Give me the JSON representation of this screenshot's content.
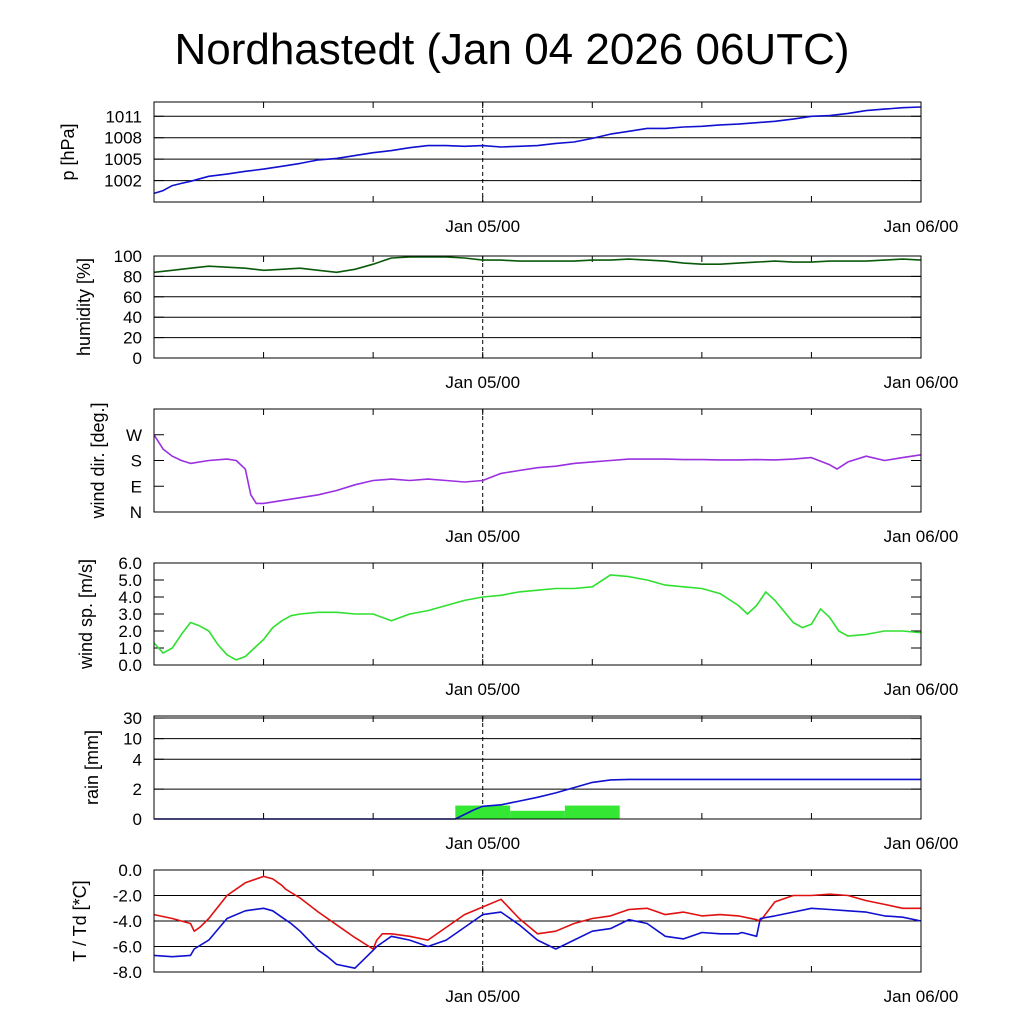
{
  "title": "Nordhastedt (Jan 04 2026 06UTC)",
  "x_axis": {
    "ticks": [
      "Jan 05/00",
      "Jan 06/00"
    ],
    "tick_hours": [
      18,
      42
    ],
    "range_hours": [
      0,
      42
    ]
  },
  "chart_data": [
    {
      "id": "pressure",
      "type": "line",
      "ylabel": "p [hPa]",
      "ylim": [
        999,
        1013
      ],
      "yticks": [
        1002,
        1005,
        1008,
        1011
      ],
      "ytick_labels": [
        "1002",
        "1005",
        "1008",
        "1011"
      ],
      "grid": true,
      "series": [
        {
          "color": "#1010d0",
          "x": [
            0,
            0.5,
            1,
            1.5,
            2,
            3,
            4,
            5,
            6,
            7,
            8,
            9,
            10,
            11,
            12,
            13,
            14,
            15,
            16,
            17,
            18,
            19,
            20,
            21,
            22,
            23,
            24,
            25,
            26,
            27,
            28,
            29,
            30,
            31,
            32,
            33,
            34,
            35,
            36,
            37,
            38,
            39,
            40,
            41,
            42
          ],
          "y": [
            1000.2,
            1000.6,
            1001.3,
            1001.6,
            1001.9,
            1002.6,
            1002.9,
            1003.3,
            1003.6,
            1004.0,
            1004.4,
            1004.9,
            1005.1,
            1005.5,
            1005.9,
            1006.2,
            1006.6,
            1006.9,
            1006.9,
            1006.8,
            1006.9,
            1006.7,
            1006.8,
            1006.9,
            1007.2,
            1007.4,
            1007.9,
            1008.5,
            1008.9,
            1009.3,
            1009.3,
            1009.5,
            1009.6,
            1009.8,
            1009.9,
            1010.1,
            1010.3,
            1010.6,
            1011.0,
            1011.1,
            1011.4,
            1011.8,
            1012.0,
            1012.2,
            1012.3
          ]
        }
      ]
    },
    {
      "id": "humidity",
      "type": "line",
      "ylabel": "humidity [%]",
      "ylim": [
        0,
        100
      ],
      "yticks": [
        0,
        20,
        40,
        60,
        80,
        100
      ],
      "ytick_labels": [
        "0",
        "20",
        "40",
        "60",
        "80",
        "100"
      ],
      "grid": true,
      "series": [
        {
          "color": "#0a5a0a",
          "x": [
            0,
            1,
            2,
            3,
            4,
            5,
            6,
            7,
            8,
            9,
            10,
            11,
            12,
            13,
            14,
            15,
            16,
            17,
            18,
            19,
            20,
            21,
            22,
            23,
            24,
            25,
            26,
            27,
            28,
            29,
            30,
            31,
            32,
            33,
            34,
            35,
            36,
            37,
            38,
            39,
            40,
            41,
            42
          ],
          "y": [
            84,
            86,
            88,
            90,
            89,
            88,
            86,
            87,
            88,
            86,
            84,
            87,
            92,
            98,
            99,
            99,
            99,
            98,
            96,
            96,
            95,
            95,
            95,
            95,
            96,
            96,
            97,
            96,
            95,
            93,
            92,
            92,
            93,
            94,
            95,
            94,
            94,
            95,
            95,
            95,
            96,
            97,
            96
          ]
        }
      ]
    },
    {
      "id": "wind_dir",
      "type": "line",
      "ylabel": "wind dir. [deg.]",
      "ylim": [
        0,
        360
      ],
      "yticks": [
        0,
        90,
        180,
        270
      ],
      "ytick_labels": [
        "N",
        "E",
        "S",
        "W"
      ],
      "grid": false,
      "series": [
        {
          "color": "#9b30e0",
          "x": [
            0,
            0.5,
            1,
            1.5,
            2,
            3,
            4,
            4.5,
            5,
            5.3,
            5.6,
            6,
            7,
            8,
            9,
            10,
            11,
            12,
            13,
            14,
            15,
            16,
            17,
            18,
            19,
            20,
            21,
            22,
            23,
            24,
            25,
            26,
            27,
            28,
            29,
            30,
            31,
            32,
            33,
            34,
            35,
            36,
            37,
            37.4,
            38,
            39,
            40,
            41,
            42
          ],
          "y": [
            270,
            220,
            195,
            180,
            170,
            180,
            185,
            180,
            150,
            60,
            30,
            30,
            40,
            50,
            60,
            75,
            95,
            110,
            115,
            110,
            115,
            110,
            105,
            110,
            135,
            145,
            155,
            160,
            170,
            175,
            180,
            185,
            185,
            185,
            183,
            183,
            182,
            182,
            183,
            182,
            185,
            190,
            165,
            150,
            175,
            195,
            180,
            190,
            200
          ]
        }
      ]
    },
    {
      "id": "wind_speed",
      "type": "line",
      "ylabel": "wind sp. [m/s]",
      "ylim": [
        0,
        6.0
      ],
      "yticks": [
        0,
        1,
        2,
        3,
        4,
        5,
        6
      ],
      "ytick_labels": [
        "0.0",
        "1.0",
        "2.0",
        "3.0",
        "4.0",
        "5.0",
        "6.0"
      ],
      "grid": false,
      "series": [
        {
          "color": "#30e030",
          "x": [
            0,
            0.5,
            1,
            1.5,
            2,
            2.5,
            3,
            3.5,
            4,
            4.5,
            5,
            5.5,
            6,
            6.5,
            7,
            7.5,
            8,
            9,
            10,
            11,
            12,
            13,
            14,
            15,
            16,
            17,
            18,
            19,
            20,
            21,
            22,
            23,
            24,
            25,
            26,
            27,
            28,
            29,
            30,
            31,
            32,
            32.5,
            33,
            33.5,
            34,
            35,
            35.5,
            36,
            36.5,
            37,
            37.5,
            38,
            39,
            40,
            41,
            42
          ],
          "y": [
            1.3,
            0.7,
            1.0,
            1.8,
            2.5,
            2.3,
            2.0,
            1.2,
            0.6,
            0.3,
            0.5,
            1.0,
            1.5,
            2.2,
            2.6,
            2.9,
            3.0,
            3.1,
            3.1,
            3.0,
            3.0,
            2.6,
            3.0,
            3.2,
            3.5,
            3.8,
            4.0,
            4.1,
            4.3,
            4.4,
            4.5,
            4.5,
            4.6,
            5.3,
            5.2,
            5.0,
            4.7,
            4.6,
            4.5,
            4.2,
            3.5,
            3.0,
            3.5,
            4.3,
            3.8,
            2.5,
            2.2,
            2.4,
            3.3,
            2.8,
            2.0,
            1.7,
            1.8,
            2.0,
            2.0,
            1.9
          ]
        }
      ]
    },
    {
      "id": "rain",
      "type": "bar+line",
      "ylabel": "rain [mm]",
      "yticks": [
        0,
        2,
        4,
        10,
        30
      ],
      "ytick_labels": [
        "0",
        "2",
        "4",
        "10",
        "30"
      ],
      "grid": true,
      "bars": {
        "color": "#33e733",
        "items": [
          {
            "from": 16.5,
            "to": 19.5,
            "value": 0.9
          },
          {
            "from": 19.5,
            "to": 22.5,
            "value": 0.55
          },
          {
            "from": 22.5,
            "to": 25.5,
            "value": 0.9
          }
        ]
      },
      "series": [
        {
          "color": "#1010d0",
          "x": [
            0,
            16.5,
            17,
            17.5,
            18,
            19,
            20,
            21,
            22,
            23,
            24,
            25,
            26,
            28,
            30,
            42
          ],
          "y": [
            0,
            0,
            0.3,
            0.6,
            0.85,
            0.95,
            1.2,
            1.45,
            1.75,
            2.1,
            2.45,
            2.62,
            2.65,
            2.65,
            2.65,
            2.65
          ]
        }
      ]
    },
    {
      "id": "temperature",
      "type": "line",
      "ylabel": "T / Td [*C]",
      "ylim": [
        -8.0,
        0.0
      ],
      "yticks": [
        -8,
        -6,
        -4,
        -2,
        0
      ],
      "ytick_labels": [
        "-8.0",
        "-6.0",
        "-4.0",
        "-2.0",
        "0.0"
      ],
      "grid": true,
      "series": [
        {
          "name": "T",
          "color": "#e01010",
          "x": [
            0,
            1,
            2,
            2.2,
            2.5,
            3,
            4,
            5,
            6,
            6.5,
            7,
            7.2,
            8,
            9,
            10,
            11,
            12,
            12.2,
            12.5,
            13,
            14,
            15,
            16,
            17,
            18,
            19,
            20,
            21,
            22,
            23,
            24,
            25,
            26,
            27,
            28,
            29,
            30,
            31,
            32,
            33,
            33.2,
            34,
            35,
            36,
            37,
            38,
            39,
            40,
            41,
            42
          ],
          "y": [
            -3.5,
            -3.8,
            -4.2,
            -4.8,
            -4.5,
            -3.8,
            -2.0,
            -1.0,
            -0.5,
            -0.7,
            -1.2,
            -1.5,
            -2.2,
            -3.3,
            -4.3,
            -5.3,
            -6.2,
            -5.5,
            -5.0,
            -5.0,
            -5.2,
            -5.5,
            -4.5,
            -3.5,
            -2.9,
            -2.3,
            -3.8,
            -5.0,
            -4.8,
            -4.2,
            -3.8,
            -3.6,
            -3.1,
            -3.0,
            -3.5,
            -3.3,
            -3.6,
            -3.5,
            -3.6,
            -3.9,
            -4.0,
            -2.5,
            -2.0,
            -2.0,
            -1.9,
            -2.0,
            -2.4,
            -2.7,
            -3.0,
            -3.0
          ]
        },
        {
          "name": "Td",
          "color": "#1010d0",
          "x": [
            0,
            1,
            2,
            2.2,
            3,
            4,
            5,
            6,
            6.5,
            7,
            7.5,
            8,
            9,
            9.5,
            10,
            11,
            12,
            12.2,
            13,
            14,
            15,
            16,
            17,
            18,
            19,
            20,
            21,
            22,
            23,
            24,
            25,
            26,
            27,
            28,
            29,
            30,
            31,
            32,
            32.2,
            33,
            33.2,
            34,
            35,
            36,
            37,
            38,
            39,
            40,
            41,
            42
          ],
          "y": [
            -6.7,
            -6.8,
            -6.7,
            -6.2,
            -5.5,
            -3.8,
            -3.2,
            -3.0,
            -3.2,
            -3.7,
            -4.2,
            -4.8,
            -6.3,
            -6.8,
            -7.4,
            -7.7,
            -6.3,
            -6.0,
            -5.2,
            -5.5,
            -6.0,
            -5.5,
            -4.5,
            -3.5,
            -3.3,
            -4.3,
            -5.5,
            -6.2,
            -5.5,
            -4.8,
            -4.6,
            -3.9,
            -4.2,
            -5.2,
            -5.4,
            -4.9,
            -5.0,
            -5.0,
            -4.9,
            -5.2,
            -3.8,
            -3.6,
            -3.3,
            -3.0,
            -3.1,
            -3.2,
            -3.3,
            -3.6,
            -3.7,
            -4.0
          ]
        }
      ]
    }
  ]
}
